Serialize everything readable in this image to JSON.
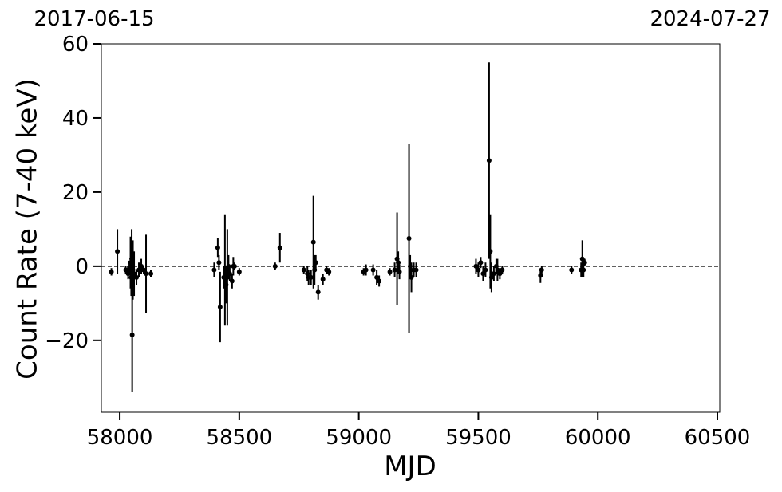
{
  "chart_data": {
    "type": "errorbar",
    "xlabel": "MJD",
    "ylabel": "Count Rate (7-40 keV)",
    "annotations": [
      "2017-06-15",
      "2024-07-27"
    ],
    "xlim": [
      57923,
      60510
    ],
    "ylim": [
      -39.4,
      60
    ],
    "xticks": [
      58000,
      58500,
      59000,
      59500,
      60000,
      60500
    ],
    "yticks": [
      {
        "value": -20,
        "label": "−20"
      },
      0,
      20,
      40,
      60
    ],
    "hline": 0,
    "color": "#000000",
    "x": [
      57965,
      57990,
      58025,
      58035,
      58040,
      58045,
      58048,
      58050,
      58052,
      58055,
      58060,
      58070,
      58080,
      58090,
      58100,
      58110,
      58130,
      58395,
      58410,
      58415,
      58420,
      58435,
      58440,
      58445,
      58450,
      58455,
      58460,
      58470,
      58475,
      58480,
      58500,
      58650,
      58670,
      58770,
      58785,
      58790,
      58800,
      58810,
      58815,
      58820,
      58830,
      58850,
      58865,
      58875,
      59020,
      59030,
      59060,
      59075,
      59085,
      59130,
      59150,
      59160,
      59165,
      59170,
      59210,
      59215,
      59220,
      59230,
      59240,
      59490,
      59500,
      59510,
      59520,
      59530,
      59545,
      59550,
      59555,
      59565,
      59575,
      59580,
      59590,
      59600,
      59760,
      59765,
      59890,
      59930,
      59935,
      59940,
      59945
    ],
    "values": [
      -1.5,
      4,
      -1,
      -2,
      -0.5,
      1,
      -3,
      2,
      -18.5,
      -1,
      -2,
      -3,
      -1,
      0,
      -1,
      -2,
      -2,
      -1,
      5,
      1,
      -11,
      -3,
      -1,
      -5,
      -3,
      0,
      -2,
      -4,
      0,
      0,
      -1.5,
      0,
      5,
      -1,
      -2,
      -3,
      -3,
      6.5,
      -1,
      1,
      -7,
      -3.5,
      -1,
      -1.5,
      -1.5,
      -1,
      -1,
      -3,
      -4,
      -1.5,
      -1,
      2,
      1,
      -1.5,
      7.5,
      0,
      -3,
      -1,
      -1,
      0,
      -1,
      1,
      -2,
      -1,
      28.5,
      4,
      -3,
      -2,
      0,
      -1,
      -2,
      -1,
      -2.5,
      -1,
      -1,
      -1,
      2,
      -1,
      1
    ],
    "errors": [
      1,
      6,
      1,
      1.5,
      2,
      7,
      5,
      8,
      15.5,
      8,
      6,
      2,
      2,
      2,
      1,
      10.5,
      1,
      2,
      2.5,
      2,
      9.5,
      3,
      15,
      5,
      13,
      3,
      2,
      2,
      2.5,
      1,
      1,
      1,
      4,
      1,
      2,
      2,
      2,
      12.5,
      4,
      2,
      2,
      1.5,
      1,
      1,
      1,
      1.5,
      1.5,
      2,
      1.5,
      1,
      2,
      12.5,
      3,
      2,
      25.5,
      3,
      4,
      2,
      2,
      2,
      2,
      1.5,
      2,
      2,
      26.5,
      10,
      4,
      2,
      2,
      3,
      1.5,
      1,
      2,
      1,
      1,
      2,
      5,
      2,
      1
    ]
  }
}
